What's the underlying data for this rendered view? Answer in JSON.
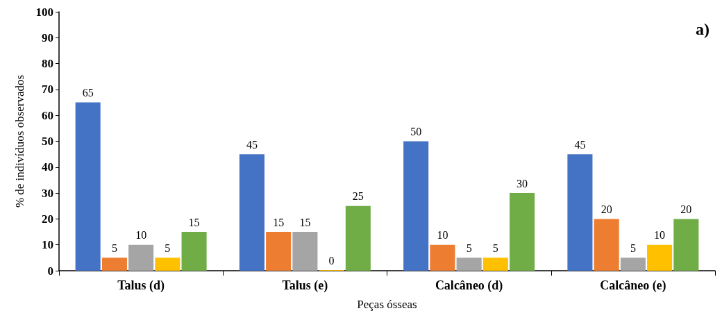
{
  "chart_data": {
    "type": "bar",
    "xlabel": "Peças ósseas",
    "ylabel": "% de indivíduos observados",
    "annotations": [
      "a)"
    ],
    "categories": [
      "Talus (d)",
      "Talus (e)",
      "Calcâneo (d)",
      "Calcâneo (e)"
    ],
    "series": [
      {
        "color": "#4472c4",
        "values": [
          65,
          45,
          50,
          45
        ]
      },
      {
        "color": "#ed7d31",
        "values": [
          5,
          15,
          10,
          20
        ]
      },
      {
        "color": "#a5a5a5",
        "values": [
          10,
          15,
          5,
          5
        ]
      },
      {
        "color": "#ffc000",
        "values": [
          5,
          0,
          5,
          10
        ]
      },
      {
        "color": "#70ad47",
        "values": [
          15,
          25,
          30,
          20
        ]
      }
    ],
    "ylim": [
      0,
      100
    ],
    "yticks": [
      0,
      10,
      20,
      30,
      40,
      50,
      60,
      70,
      80,
      90,
      100
    ],
    "grid": false,
    "data_labels": true
  }
}
